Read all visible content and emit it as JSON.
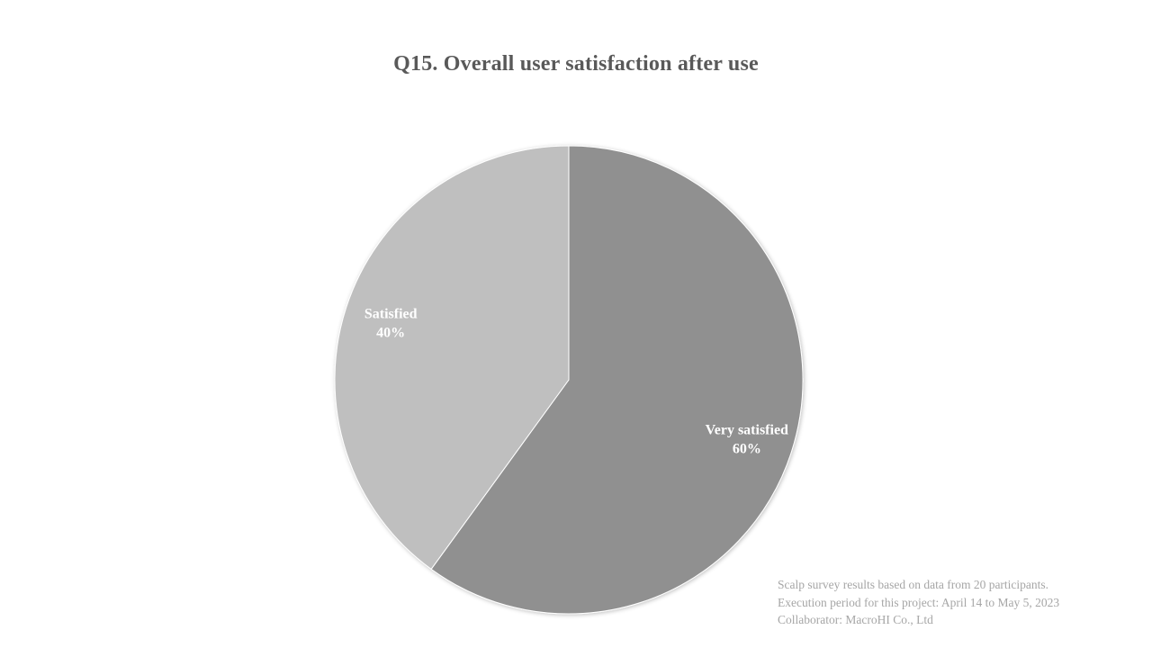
{
  "chart_data": {
    "type": "pie",
    "title": "Q15. Overall user satisfaction after use",
    "categories": [
      "Very satisfied",
      "Satisfied"
    ],
    "values": [
      60,
      40
    ],
    "value_labels": [
      "60%",
      "40%"
    ],
    "colors": [
      "#909090",
      "#bfbfbf"
    ],
    "start_angle_deg": 0,
    "direction": "clockwise",
    "legend": "none",
    "labels_position": "inside"
  },
  "footnote": {
    "line1": "Scalp survey results based on data from 20 participants.",
    "line2": "Execution period for this project: April 14 to May 5, 2023",
    "line3": "Collaborator: MacroHI Co., Ltd"
  }
}
